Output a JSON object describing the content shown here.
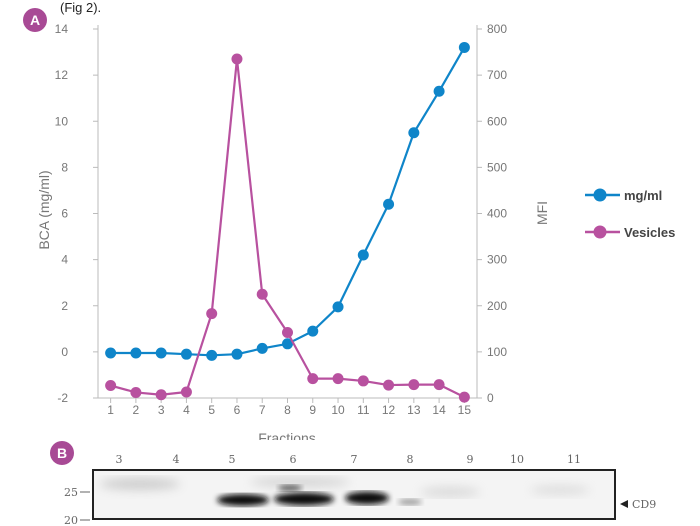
{
  "panel_a": {
    "badge": "A",
    "caption": "(Fig 2)."
  },
  "panel_b": {
    "badge": "B",
    "lanes": [
      "3",
      "4",
      "5",
      "6",
      "7",
      "8",
      "9",
      "10",
      "11"
    ],
    "marker_top": "25",
    "marker_bottom": "20",
    "band_label": "CD9"
  },
  "chart_data": {
    "type": "line",
    "xlabel": "Fractions",
    "ylabel": "BCA (mg/ml)",
    "y2label": "MFI",
    "x": [
      1,
      2,
      3,
      4,
      5,
      6,
      7,
      8,
      9,
      10,
      11,
      12,
      13,
      14,
      15
    ],
    "ylim": [
      -2,
      14
    ],
    "yticks": [
      -2,
      0,
      2,
      4,
      6,
      8,
      10,
      12,
      14
    ],
    "y2lim": [
      0,
      800
    ],
    "y2ticks": [
      0,
      100,
      200,
      300,
      400,
      500,
      600,
      700,
      800
    ],
    "legend_position": "right",
    "series": [
      {
        "name": "mg/ml",
        "axis": "left",
        "color": "#0f85c9",
        "values": [
          -0.05,
          -0.05,
          -0.05,
          -0.1,
          -0.15,
          -0.1,
          0.15,
          0.35,
          0.9,
          1.95,
          4.2,
          6.4,
          9.5,
          11.3,
          13.2
        ]
      },
      {
        "name": "Vesicles",
        "axis": "right",
        "color": "#b8519f",
        "values": [
          27,
          12,
          7,
          13,
          183,
          735,
          225,
          142,
          42,
          42,
          37,
          28,
          29,
          29,
          2
        ]
      }
    ]
  }
}
